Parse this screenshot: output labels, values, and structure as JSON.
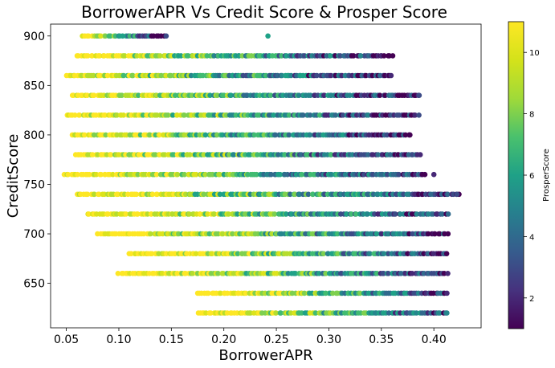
{
  "chart_data": {
    "type": "scatter",
    "title": "BorrowerAPR Vs Credit Score & Prosper Score",
    "xlabel": "BorrowerAPR",
    "ylabel": "CreditScore",
    "xlim": [
      0.035,
      0.445
    ],
    "ylim": [
      605,
      912
    ],
    "xticks": [
      0.05,
      0.1,
      0.15,
      0.2,
      0.25,
      0.3,
      0.35,
      0.4
    ],
    "xtick_labels": [
      "0.05",
      "0.10",
      "0.15",
      "0.20",
      "0.25",
      "0.30",
      "0.35",
      "0.40"
    ],
    "yticks": [
      650,
      700,
      750,
      800,
      850,
      900
    ],
    "ytick_labels": [
      "650",
      "700",
      "750",
      "800",
      "850",
      "900"
    ],
    "grid": false,
    "colorbar": {
      "label": "ProsperScore",
      "range": [
        1,
        11
      ],
      "ticks": [
        2,
        4,
        6,
        8,
        10
      ],
      "tick_labels": [
        "2",
        "4",
        "6",
        "8",
        "10"
      ],
      "colormap": "viridis"
    },
    "rows": [
      {
        "y": 900,
        "x_min": 0.065,
        "x_max": 0.145
      },
      {
        "y": 880,
        "x_min": 0.06,
        "x_max": 0.36
      },
      {
        "y": 860,
        "x_min": 0.05,
        "x_max": 0.36
      },
      {
        "y": 840,
        "x_min": 0.055,
        "x_max": 0.385
      },
      {
        "y": 820,
        "x_min": 0.05,
        "x_max": 0.385
      },
      {
        "y": 800,
        "x_min": 0.055,
        "x_max": 0.378
      },
      {
        "y": 780,
        "x_min": 0.058,
        "x_max": 0.387
      },
      {
        "y": 760,
        "x_min": 0.048,
        "x_max": 0.392
      },
      {
        "y": 740,
        "x_min": 0.06,
        "x_max": 0.423
      },
      {
        "y": 720,
        "x_min": 0.07,
        "x_max": 0.413
      },
      {
        "y": 700,
        "x_min": 0.08,
        "x_max": 0.413
      },
      {
        "y": 680,
        "x_min": 0.11,
        "x_max": 0.413
      },
      {
        "y": 660,
        "x_min": 0.1,
        "x_max": 0.413
      },
      {
        "y": 640,
        "x_min": 0.175,
        "x_max": 0.413
      },
      {
        "y": 620,
        "x_min": 0.175,
        "x_max": 0.413
      }
    ],
    "outliers": [
      {
        "x": 0.242,
        "y": 900,
        "score": 6
      },
      {
        "x": 0.33,
        "y": 880,
        "score": 5
      },
      {
        "x": 0.422,
        "y": 740,
        "score": 3
      },
      {
        "x": 0.386,
        "y": 840,
        "score": 3
      },
      {
        "x": 0.4,
        "y": 760,
        "score": 2
      }
    ]
  }
}
